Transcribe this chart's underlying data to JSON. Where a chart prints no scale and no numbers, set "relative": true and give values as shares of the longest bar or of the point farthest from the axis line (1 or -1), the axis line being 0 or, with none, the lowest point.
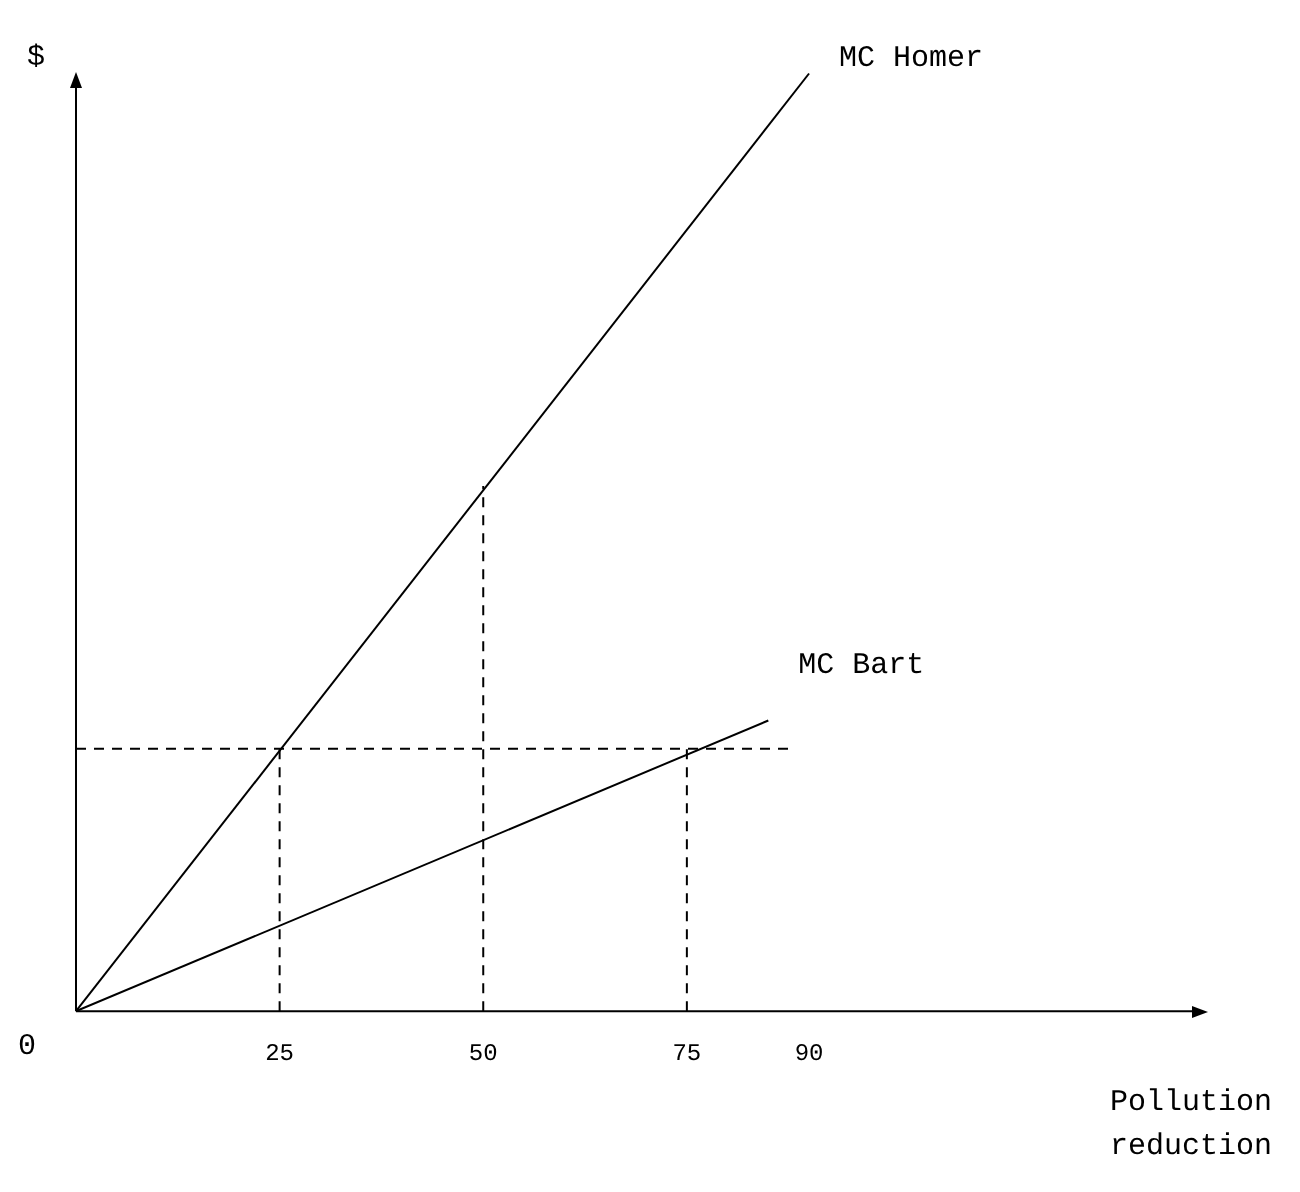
{
  "chart_data": {
    "type": "line",
    "relative": true,
    "xlabel": "Pollution reduction",
    "ylabel": "$",
    "xlim": [
      0,
      138
    ],
    "xticks": [
      25,
      50,
      75,
      90
    ],
    "annotations": [
      "0"
    ],
    "line_style": "solid",
    "marker": "none",
    "grid": false,
    "legend": false,
    "series": [
      {
        "name": "MC Homer",
        "color": "#000000",
        "x": [
          0,
          90
        ],
        "values": [
          0,
          1
        ]
      },
      {
        "name": "MC Bart",
        "color": "#000000",
        "x": [
          0,
          85
        ],
        "values": [
          0,
          0.31
        ]
      },
      {
        "color": "#000000",
        "line_style": "dashed",
        "x": [
          0,
          88
        ],
        "values": [
          0.28,
          0.28
        ]
      },
      {
        "color": "#000000",
        "line_style": "dashed",
        "x": [
          25,
          25
        ],
        "values": [
          0,
          0.28
        ]
      },
      {
        "color": "#000000",
        "line_style": "dashed",
        "x": [
          50,
          50
        ],
        "values": [
          0,
          0.56
        ]
      },
      {
        "color": "#000000",
        "line_style": "dashed",
        "x": [
          75,
          75
        ],
        "values": [
          0,
          0.28
        ]
      }
    ]
  }
}
